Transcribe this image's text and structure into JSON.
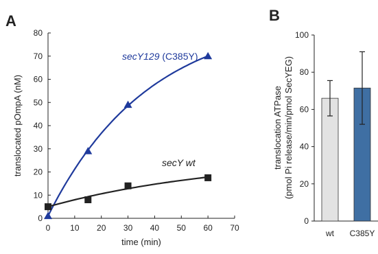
{
  "chart_data": [
    {
      "panel": "A",
      "type": "scatter",
      "xlabel": "time (min)",
      "ylabel": "translocated pOmpA (nM)",
      "xlim": [
        0,
        70
      ],
      "ylim": [
        0,
        80
      ],
      "xticks": [
        0,
        10,
        20,
        30,
        40,
        50,
        60,
        70
      ],
      "yticks": [
        0,
        10,
        20,
        30,
        40,
        50,
        60,
        70,
        80
      ],
      "grid": false,
      "legend": "none",
      "series": [
        {
          "name": "secY129 (C385Y)",
          "label_italic": "secY129",
          "label_plain": " (C385Y)",
          "marker": "triangle",
          "color": "#1f3a9c",
          "x": [
            0,
            15,
            30,
            60
          ],
          "y": [
            1,
            29,
            49,
            70
          ],
          "fit": "saturating"
        },
        {
          "name": "secY wt",
          "label_italic": "secY wt",
          "label_plain": "",
          "marker": "square",
          "color": "#222222",
          "x": [
            0,
            15,
            30,
            60
          ],
          "y": [
            5,
            8,
            14,
            17.5
          ],
          "fit": "saturating"
        }
      ]
    },
    {
      "panel": "B",
      "type": "bar",
      "ylabel_line1": "translocation ATPase",
      "ylabel_line2": "(pmol Pi release/min/pmol SecYEG)",
      "categories": [
        "wt",
        "C385Y"
      ],
      "values": [
        66,
        71.5
      ],
      "errors": [
        9.5,
        19.5
      ],
      "colors": [
        "#e2e2e2",
        "#3f6fa3"
      ],
      "ylim": [
        0,
        100
      ],
      "yticks": [
        0,
        20,
        40,
        60,
        80,
        100
      ],
      "grid": false,
      "legend": "none"
    }
  ]
}
